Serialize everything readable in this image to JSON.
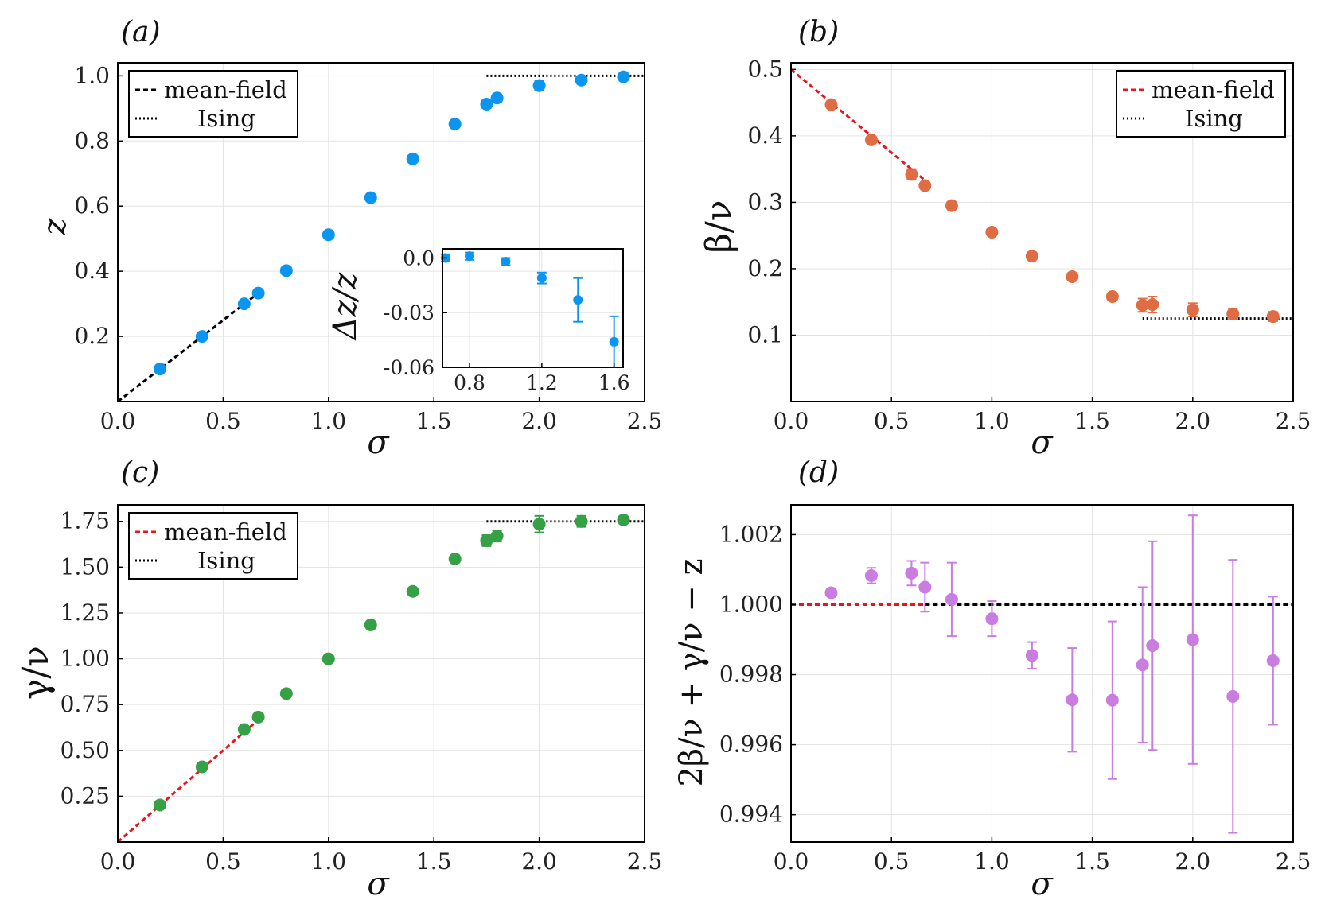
{
  "colors": {
    "a": "#0a96f0",
    "b": "#e06c44",
    "c": "#36a047",
    "d": "#c97de0",
    "mean_field_black": "#000000",
    "mean_field_red": "#e8141e",
    "grid": "#e3e3e3"
  },
  "chart_data": [
    {
      "panel": "a",
      "type": "scatter",
      "panel_label": "(a)",
      "xlabel": "σ",
      "ylabel": "z",
      "xlim": [
        0.0,
        2.5
      ],
      "ylim": [
        0.0,
        1.04
      ],
      "xticks": [
        0.0,
        0.5,
        1.0,
        1.5,
        2.0,
        2.5
      ],
      "xtick_labels": [
        "0.0",
        "0.5",
        "1.0",
        "1.5",
        "2.0",
        "2.5"
      ],
      "yticks": [
        0.2,
        0.4,
        0.6,
        0.8,
        1.0
      ],
      "ytick_labels": [
        "0.2",
        "0.4",
        "0.6",
        "0.8",
        "1.0"
      ],
      "grid": true,
      "legend_position": "top-left",
      "legend": [
        {
          "label": "mean-field",
          "style": "dashed",
          "color": "#000000"
        },
        {
          "label": "Ising",
          "style": "dotted",
          "color": "#000000"
        }
      ],
      "series": [
        {
          "color": "#0a96f0",
          "x": [
            0.2,
            0.4,
            0.6,
            0.667,
            0.8,
            1.0,
            1.2,
            1.4,
            1.6,
            1.75,
            1.8,
            2.0,
            2.2,
            2.4
          ],
          "y": [
            0.1,
            0.2,
            0.3,
            0.333,
            0.402,
            0.512,
            0.626,
            0.745,
            0.852,
            0.913,
            0.932,
            0.97,
            0.987,
            0.997
          ],
          "err": [
            0.003,
            0.003,
            0.004,
            0.004,
            0.004,
            0.005,
            0.005,
            0.006,
            0.01,
            0.012,
            0.012,
            0.015,
            0.012,
            0.006
          ]
        }
      ],
      "reference_lines": [
        {
          "name": "mean-field",
          "style": "dashed",
          "color": "#000000",
          "x": [
            0.0,
            0.667
          ],
          "y": [
            0.0,
            0.333
          ]
        },
        {
          "name": "Ising",
          "style": "dotted",
          "color": "#000000",
          "x": [
            1.75,
            2.5
          ],
          "y": [
            1.0,
            1.0
          ]
        }
      ],
      "inset": {
        "ylabel": "Δz/z",
        "xlim": [
          0.65,
          1.65
        ],
        "ylim": [
          -0.06,
          0.005
        ],
        "xticks": [
          0.8,
          1.2,
          1.6
        ],
        "xtick_labels": [
          "0.8",
          "1.2",
          "1.6"
        ],
        "yticks": [
          0.0,
          -0.03,
          -0.06
        ],
        "ytick_labels": [
          "0.0",
          "-0.03",
          "-0.06"
        ],
        "x": [
          0.667,
          0.8,
          1.0,
          1.2,
          1.4,
          1.6
        ],
        "y": [
          0.0,
          0.001,
          -0.002,
          -0.011,
          -0.023,
          -0.046
        ],
        "err": [
          0.002,
          0.002,
          0.002,
          0.003,
          0.012,
          0.014
        ]
      }
    },
    {
      "panel": "b",
      "type": "scatter",
      "panel_label": "(b)",
      "xlabel": "σ",
      "ylabel": "β/ν",
      "xlim": [
        0.0,
        2.5
      ],
      "ylim": [
        0.0,
        0.51
      ],
      "xticks": [
        0.0,
        0.5,
        1.0,
        1.5,
        2.0,
        2.5
      ],
      "xtick_labels": [
        "0.0",
        "0.5",
        "1.0",
        "1.5",
        "2.0",
        "2.5"
      ],
      "yticks": [
        0.1,
        0.2,
        0.3,
        0.4,
        0.5
      ],
      "ytick_labels": [
        "0.1",
        "0.2",
        "0.3",
        "0.4",
        "0.5"
      ],
      "grid": true,
      "legend_position": "top-right",
      "legend": [
        {
          "label": "mean-field",
          "style": "dashed",
          "color": "#e8141e"
        },
        {
          "label": "Ising",
          "style": "dotted",
          "color": "#000000"
        }
      ],
      "series": [
        {
          "color": "#e06c44",
          "x": [
            0.2,
            0.4,
            0.6,
            0.667,
            0.8,
            1.0,
            1.2,
            1.4,
            1.6,
            1.75,
            1.8,
            2.0,
            2.2,
            2.4
          ],
          "y": [
            0.447,
            0.394,
            0.342,
            0.325,
            0.295,
            0.255,
            0.219,
            0.188,
            0.158,
            0.145,
            0.146,
            0.138,
            0.132,
            0.128
          ],
          "err": [
            0.003,
            0.004,
            0.008,
            0.005,
            0.003,
            0.003,
            0.003,
            0.004,
            0.006,
            0.01,
            0.012,
            0.01,
            0.008,
            0.007
          ]
        }
      ],
      "reference_lines": [
        {
          "name": "mean-field",
          "style": "dashed",
          "color": "#e8141e",
          "x": [
            0.0,
            0.667
          ],
          "y": [
            0.5,
            0.333
          ]
        },
        {
          "name": "Ising",
          "style": "dotted",
          "color": "#000000",
          "x": [
            1.75,
            2.5
          ],
          "y": [
            0.125,
            0.125
          ]
        }
      ]
    },
    {
      "panel": "c",
      "type": "scatter",
      "panel_label": "(c)",
      "xlabel": "σ",
      "ylabel": "γ/ν",
      "xlim": [
        0.0,
        2.5
      ],
      "ylim": [
        0.0,
        1.84
      ],
      "xticks": [
        0.0,
        0.5,
        1.0,
        1.5,
        2.0,
        2.5
      ],
      "xtick_labels": [
        "0.0",
        "0.5",
        "1.0",
        "1.5",
        "2.0",
        "2.5"
      ],
      "yticks": [
        0.25,
        0.5,
        0.75,
        1.0,
        1.25,
        1.5,
        1.75
      ],
      "ytick_labels": [
        "0.25",
        "0.50",
        "0.75",
        "1.00",
        "1.25",
        "1.50",
        "1.75"
      ],
      "grid": true,
      "legend_position": "top-left",
      "legend": [
        {
          "label": "mean-field",
          "style": "dashed",
          "color": "#e8141e"
        },
        {
          "label": "Ising",
          "style": "dotted",
          "color": "#000000"
        }
      ],
      "series": [
        {
          "color": "#36a047",
          "x": [
            0.2,
            0.4,
            0.6,
            0.667,
            0.8,
            1.0,
            1.2,
            1.4,
            1.6,
            1.75,
            1.8,
            2.0,
            2.2,
            2.4
          ],
          "y": [
            0.202,
            0.41,
            0.614,
            0.682,
            0.81,
            1.0,
            1.185,
            1.368,
            1.545,
            1.645,
            1.67,
            1.735,
            1.75,
            1.758
          ],
          "err": [
            0.004,
            0.004,
            0.005,
            0.005,
            0.005,
            0.005,
            0.005,
            0.007,
            0.02,
            0.03,
            0.03,
            0.045,
            0.03,
            0.015
          ]
        }
      ],
      "reference_lines": [
        {
          "name": "mean-field",
          "style": "dashed",
          "color": "#e8141e",
          "x": [
            0.0,
            0.667
          ],
          "y": [
            0.0,
            0.667
          ]
        },
        {
          "name": "Ising",
          "style": "dotted",
          "color": "#000000",
          "x": [
            1.75,
            2.5
          ],
          "y": [
            1.75,
            1.75
          ]
        }
      ]
    },
    {
      "panel": "d",
      "type": "scatter",
      "panel_label": "(d)",
      "xlabel": "σ",
      "ylabel": "2β/ν + γ/ν − z",
      "xlim": [
        0.0,
        2.5
      ],
      "ylim": [
        0.99322,
        1.00285
      ],
      "xticks": [
        0.0,
        0.5,
        1.0,
        1.5,
        2.0,
        2.5
      ],
      "xtick_labels": [
        "0.0",
        "0.5",
        "1.0",
        "1.5",
        "2.0",
        "2.5"
      ],
      "yticks": [
        0.994,
        0.996,
        0.998,
        1.0,
        1.002
      ],
      "ytick_labels": [
        "0.994",
        "0.996",
        "0.998",
        "1.000",
        "1.002"
      ],
      "grid": true,
      "series": [
        {
          "color": "#c97de0",
          "x": [
            0.2,
            0.4,
            0.6,
            0.667,
            0.8,
            1.0,
            1.2,
            1.4,
            1.6,
            1.75,
            1.8,
            2.0,
            2.2,
            2.4
          ],
          "y": [
            1.00034,
            1.00083,
            1.0009,
            1.0005,
            1.00015,
            0.9996,
            0.99855,
            0.99728,
            0.99727,
            0.99828,
            0.99883,
            0.999,
            0.99738,
            0.9984
          ],
          "err": [
            5e-05,
            0.00022,
            0.00035,
            0.0007,
            0.00105,
            0.0005,
            0.00038,
            0.00148,
            0.00225,
            0.00222,
            0.00298,
            0.00355,
            0.0039,
            0.00183
          ]
        }
      ],
      "reference_lines": [
        {
          "name": "mean-field",
          "style": "dashed",
          "color": "#e8141e",
          "x": [
            0.0,
            0.667
          ],
          "y": [
            1.0,
            1.0
          ]
        },
        {
          "name": "unity",
          "style": "dashed",
          "color": "#000000",
          "x": [
            0.667,
            2.5
          ],
          "y": [
            1.0,
            1.0
          ]
        }
      ]
    }
  ]
}
